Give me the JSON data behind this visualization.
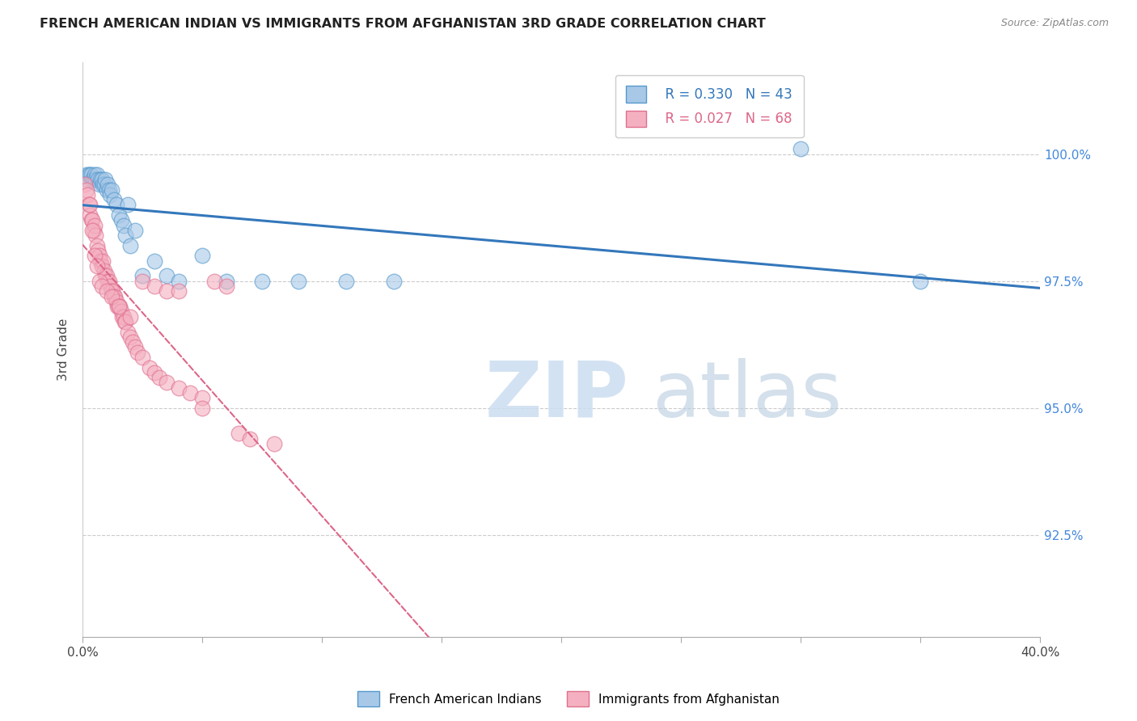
{
  "title": "FRENCH AMERICAN INDIAN VS IMMIGRANTS FROM AFGHANISTAN 3RD GRADE CORRELATION CHART",
  "source": "Source: ZipAtlas.com",
  "ylabel": "3rd Grade",
  "ytick_labels": [
    "92.5%",
    "95.0%",
    "97.5%",
    "100.0%"
  ],
  "ytick_values": [
    92.5,
    95.0,
    97.5,
    100.0
  ],
  "xlim": [
    0.0,
    40.0
  ],
  "ylim": [
    90.5,
    101.8
  ],
  "legend_r_blue": "R = 0.330",
  "legend_n_blue": "N = 43",
  "legend_r_pink": "R = 0.027",
  "legend_n_pink": "N = 68",
  "legend_label_blue": "French American Indians",
  "legend_label_pink": "Immigrants from Afghanistan",
  "blue_color": "#a8c8e8",
  "pink_color": "#f4b0c0",
  "blue_edge_color": "#5599cc",
  "pink_edge_color": "#e07090",
  "blue_line_color": "#3377bb",
  "pink_line_color": "#dd6688",
  "blue_x": [
    0.15,
    0.2,
    0.25,
    0.3,
    0.35,
    0.4,
    0.45,
    0.5,
    0.55,
    0.6,
    0.65,
    0.7,
    0.75,
    0.8,
    0.85,
    0.9,
    0.95,
    1.0,
    1.05,
    1.1,
    1.15,
    1.2,
    1.3,
    1.4,
    1.5,
    1.6,
    1.7,
    1.8,
    1.9,
    2.0,
    2.2,
    2.5,
    3.0,
    3.5,
    4.0,
    5.0,
    6.0,
    7.5,
    9.0,
    11.0,
    13.0,
    30.0,
    35.0
  ],
  "blue_y": [
    99.6,
    99.5,
    99.6,
    99.6,
    99.6,
    99.5,
    99.5,
    99.6,
    99.5,
    99.6,
    99.5,
    99.4,
    99.5,
    99.5,
    99.4,
    99.4,
    99.5,
    99.3,
    99.4,
    99.3,
    99.2,
    99.3,
    99.1,
    99.0,
    98.8,
    98.7,
    98.6,
    98.4,
    99.0,
    98.2,
    98.5,
    97.6,
    97.9,
    97.6,
    97.5,
    98.0,
    97.5,
    97.5,
    97.5,
    97.5,
    97.5,
    100.1,
    97.5
  ],
  "pink_x": [
    0.1,
    0.15,
    0.2,
    0.25,
    0.3,
    0.35,
    0.4,
    0.45,
    0.5,
    0.55,
    0.6,
    0.65,
    0.7,
    0.75,
    0.8,
    0.85,
    0.9,
    0.95,
    1.0,
    1.05,
    1.1,
    1.15,
    1.2,
    1.25,
    1.3,
    1.35,
    1.4,
    1.45,
    1.5,
    1.55,
    1.6,
    1.65,
    1.7,
    1.75,
    1.8,
    1.9,
    2.0,
    2.1,
    2.2,
    2.3,
    2.5,
    2.8,
    3.0,
    3.2,
    3.5,
    4.0,
    4.5,
    5.0,
    5.5,
    6.0,
    0.3,
    0.4,
    0.5,
    0.6,
    0.7,
    0.8,
    1.0,
    1.2,
    1.5,
    2.0,
    2.5,
    3.0,
    3.5,
    4.0,
    5.0,
    6.5,
    7.0,
    8.0
  ],
  "pink_y": [
    99.4,
    99.3,
    99.2,
    99.0,
    98.8,
    98.7,
    98.7,
    98.5,
    98.6,
    98.4,
    98.2,
    98.1,
    98.0,
    97.9,
    97.8,
    97.9,
    97.7,
    97.6,
    97.6,
    97.5,
    97.5,
    97.4,
    97.3,
    97.3,
    97.2,
    97.2,
    97.1,
    97.0,
    97.0,
    97.0,
    96.9,
    96.8,
    96.8,
    96.7,
    96.7,
    96.5,
    96.4,
    96.3,
    96.2,
    96.1,
    96.0,
    95.8,
    95.7,
    95.6,
    95.5,
    95.4,
    95.3,
    95.2,
    97.5,
    97.4,
    99.0,
    98.5,
    98.0,
    97.8,
    97.5,
    97.4,
    97.3,
    97.2,
    97.0,
    96.8,
    97.5,
    97.4,
    97.3,
    97.3,
    95.0,
    94.5,
    94.4,
    94.3
  ]
}
